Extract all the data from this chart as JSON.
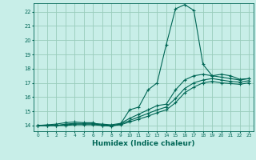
{
  "background_color": "#c8eee8",
  "grid_color": "#99ccbb",
  "line_color": "#006655",
  "marker_color": "#006655",
  "xlabel": "Humidex (Indice chaleur)",
  "xlabel_fontsize": 6.5,
  "yticks": [
    14,
    15,
    16,
    17,
    18,
    19,
    20,
    21,
    22
  ],
  "xticks": [
    0,
    1,
    2,
    3,
    4,
    5,
    6,
    7,
    8,
    9,
    10,
    11,
    12,
    13,
    14,
    15,
    16,
    17,
    18,
    19,
    20,
    21,
    22,
    23
  ],
  "xlim": [
    -0.5,
    23.5
  ],
  "ylim": [
    13.6,
    22.6
  ],
  "lines": [
    {
      "x": [
        0,
        1,
        2,
        3,
        4,
        5,
        6,
        7,
        8,
        9,
        10,
        11,
        12,
        13,
        14,
        15,
        16,
        17,
        18,
        19,
        20,
        21,
        22,
        23
      ],
      "y": [
        14.0,
        14.05,
        14.1,
        14.2,
        14.25,
        14.2,
        14.2,
        14.0,
        13.95,
        14.1,
        15.1,
        15.3,
        16.5,
        17.0,
        19.7,
        22.2,
        22.5,
        22.1,
        18.3,
        17.5,
        17.6,
        17.5,
        17.25,
        17.3
      ]
    },
    {
      "x": [
        0,
        1,
        2,
        3,
        4,
        5,
        6,
        7,
        8,
        9,
        10,
        11,
        12,
        13,
        14,
        15,
        16,
        17,
        18,
        19,
        20,
        21,
        22,
        23
      ],
      "y": [
        14.0,
        14.0,
        14.0,
        14.1,
        14.15,
        14.15,
        14.15,
        14.1,
        14.05,
        14.15,
        14.5,
        14.8,
        15.1,
        15.4,
        15.5,
        16.5,
        17.2,
        17.5,
        17.6,
        17.5,
        17.4,
        17.3,
        17.2,
        17.3
      ]
    },
    {
      "x": [
        0,
        1,
        2,
        3,
        4,
        5,
        6,
        7,
        8,
        9,
        10,
        11,
        12,
        13,
        14,
        15,
        16,
        17,
        18,
        19,
        20,
        21,
        22,
        23
      ],
      "y": [
        14.0,
        14.0,
        14.0,
        14.05,
        14.1,
        14.1,
        14.1,
        14.05,
        14.0,
        14.1,
        14.35,
        14.6,
        14.85,
        15.1,
        15.3,
        15.9,
        16.6,
        17.0,
        17.2,
        17.3,
        17.2,
        17.1,
        17.05,
        17.15
      ]
    },
    {
      "x": [
        0,
        1,
        2,
        3,
        4,
        5,
        6,
        7,
        8,
        9,
        10,
        11,
        12,
        13,
        14,
        15,
        16,
        17,
        18,
        19,
        20,
        21,
        22,
        23
      ],
      "y": [
        14.0,
        14.0,
        14.0,
        14.0,
        14.05,
        14.05,
        14.05,
        14.0,
        13.98,
        14.05,
        14.25,
        14.45,
        14.65,
        14.9,
        15.1,
        15.6,
        16.3,
        16.7,
        17.0,
        17.1,
        17.0,
        16.95,
        16.9,
        17.0
      ]
    }
  ]
}
